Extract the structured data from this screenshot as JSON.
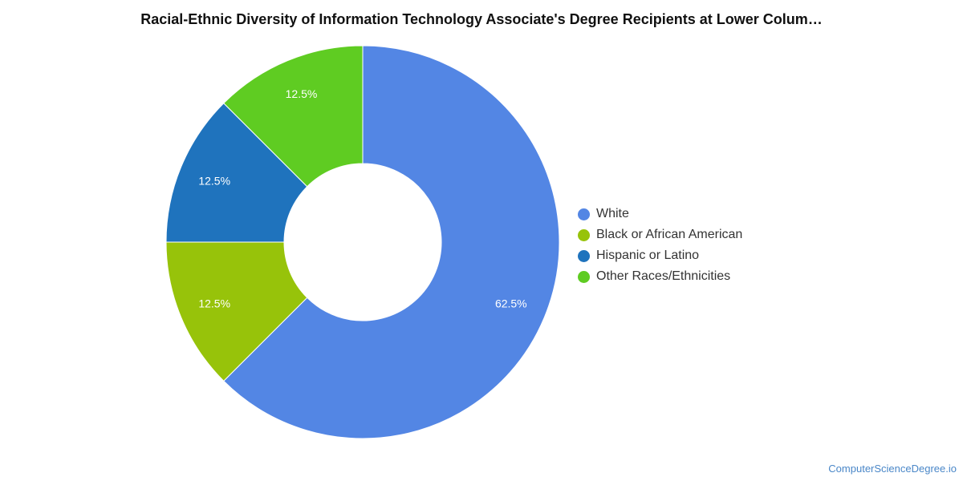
{
  "chart_data": {
    "type": "pie",
    "title": "Racial-Ethnic Diversity of Information Technology Associate's Degree Recipients at Lower Colum…",
    "donut": true,
    "categories": [
      "White",
      "Black or African American",
      "Hispanic or Latino",
      "Other Races/Ethnicities"
    ],
    "values": [
      62.5,
      12.5,
      12.5,
      12.5
    ],
    "labels": [
      "62.5%",
      "12.5%",
      "12.5%",
      "12.5%"
    ],
    "colors": [
      "#5386e4",
      "#97c30a",
      "#1f73bd",
      "#5fcc22"
    ],
    "legend_position": "right"
  },
  "credit": "ComputerScienceDegree.io"
}
